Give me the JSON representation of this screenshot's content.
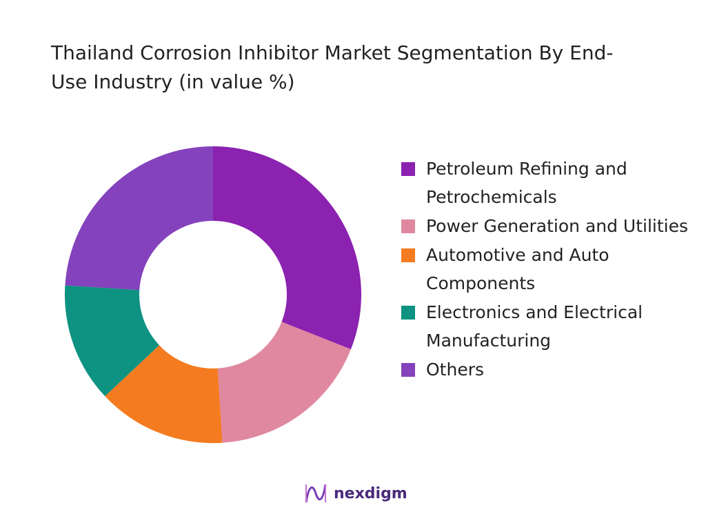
{
  "chart_data": {
    "type": "donut",
    "title": "Thailand Corrosion Inhibitor Market Segmentation By End-Use Industry (in value %)",
    "categories": [
      "Petroleum Refining and Petrochemicals",
      "Power Generation and Utilities",
      "Automotive and Auto Components",
      "Electronics and Electrical Manufacturing",
      "Others"
    ],
    "values": [
      31,
      18,
      14,
      13,
      24
    ],
    "colors": [
      "#8b22b0",
      "#e088a0",
      "#f47b20",
      "#0e9282",
      "#8442bc"
    ],
    "legend": "right"
  },
  "brand": "nexdigm"
}
